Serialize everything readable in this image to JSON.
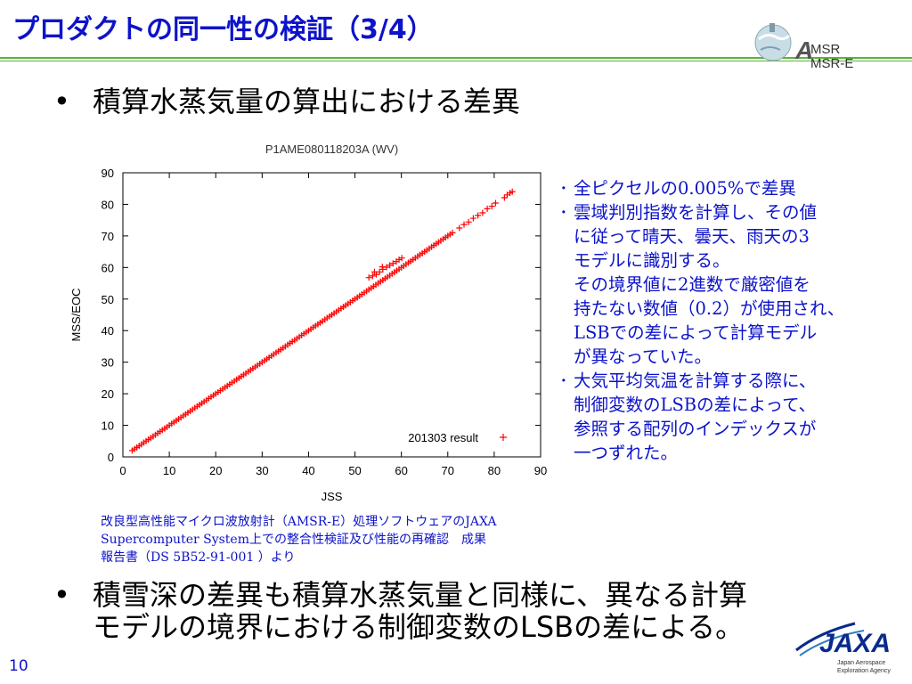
{
  "title": "プロダクトの同一性の検証（3/4）",
  "logo_top": {
    "line1": "MSR",
    "line2": "MSR-E",
    "emblem": "aqua-satellite-earth-icon"
  },
  "bullets": [
    {
      "marker": "•",
      "lines": [
        "積算水蒸気量の算出における差異"
      ]
    },
    {
      "marker": "•",
      "lines": [
        "積雪深の差異も積算水蒸気量と同様に、異なる計算",
        "モデルの境界における制御変数のLSBの差による。"
      ]
    }
  ],
  "chart_data": {
    "type": "scatter",
    "title": "P1AME080118203A (WV)",
    "xlabel": "JSS",
    "ylabel": "MSS/EOC",
    "xlim": [
      0,
      90
    ],
    "ylim": [
      0,
      90
    ],
    "xticks": [
      0,
      10,
      20,
      30,
      40,
      50,
      60,
      70,
      80,
      90
    ],
    "yticks": [
      0,
      10,
      20,
      30,
      40,
      50,
      60,
      70,
      80,
      90
    ],
    "grid": false,
    "legend": "bottom-right",
    "series": [
      {
        "name": "201303 result",
        "color": "#ff0000",
        "marker": "+",
        "main_line": {
          "x_start": 2,
          "x_end": 71,
          "step": 0.5
        },
        "points": [
          [
            72.5,
            72.5
          ],
          [
            73.5,
            73.6
          ],
          [
            74.5,
            74.4
          ],
          [
            75.5,
            75.6
          ],
          [
            76.5,
            76.5
          ],
          [
            77.5,
            77.3
          ],
          [
            78.5,
            78.6
          ],
          [
            79.5,
            79.4
          ],
          [
            80.3,
            80.4
          ],
          [
            82.2,
            82.1
          ],
          [
            82.8,
            83.0
          ],
          [
            83.4,
            83.6
          ],
          [
            83.9,
            84.0
          ],
          [
            53.0,
            56.8
          ],
          [
            53.8,
            57.3
          ],
          [
            54.6,
            57.8
          ],
          [
            55.3,
            58.6
          ],
          [
            56.0,
            59.4
          ],
          [
            56.8,
            60.1
          ],
          [
            57.5,
            60.7
          ],
          [
            58.2,
            61.3
          ],
          [
            58.9,
            61.9
          ],
          [
            59.5,
            62.5
          ],
          [
            60.1,
            63.0
          ],
          [
            54.2,
            58.6
          ],
          [
            55.9,
            60.2
          ]
        ]
      }
    ]
  },
  "notes": [
    {
      "marker": "･",
      "lines": [
        "全ピクセルの0.005%で差異"
      ]
    },
    {
      "marker": "･",
      "lines": [
        "雲域判別指数を計算し、その値",
        "に従って晴天、曇天、雨天の3",
        "モデルに識別する。",
        "その境界値に2進数で厳密値を",
        "持たない数値（0.2）が使用され、",
        "LSBでの差によって計算モデル",
        "が異なっていた。"
      ]
    },
    {
      "marker": "･",
      "lines": [
        "大気平均気温を計算する際に、",
        "制御変数のLSBの差によって、",
        "参照する配列のインデックスが",
        "一つずれた。"
      ]
    }
  ],
  "source_lines": [
    "改良型高性能マイクロ波放射計（AMSR-E）処理ソフトウェアのJAXA",
    "Supercomputer System上での整合性検証及び性能の再確認　成果",
    "報告書（DS 5B52-91-001 ）より"
  ],
  "page_number": "10",
  "jaxa_logo": {
    "text": "JAXA",
    "sub1": "Japan Aerospace",
    "sub2": "Exploration Agency",
    "icon": "jaxa-logo-icon"
  }
}
